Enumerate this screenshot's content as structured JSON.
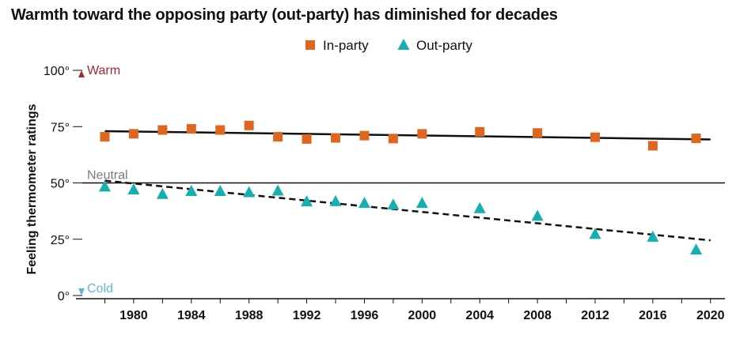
{
  "chart_data": {
    "type": "scatter",
    "title": "Warmth toward the opposing party (out-party) has diminished for decades",
    "ylabel": "Feeling thermometer ratings",
    "xlabel": "",
    "xlim": [
      1976,
      2021
    ],
    "ylim": [
      0,
      100
    ],
    "x_ticks": [
      1980,
      1984,
      1988,
      1992,
      1996,
      2000,
      2004,
      2008,
      2012,
      2016,
      2020
    ],
    "x_tick_labels": [
      "1980",
      "1984",
      "1988",
      "1992",
      "1996",
      "2000",
      "2004",
      "2008",
      "2012",
      "2016",
      "2020"
    ],
    "y_ticks": [
      0,
      25,
      50,
      75,
      100
    ],
    "y_tick_labels": [
      "0°",
      "25°",
      "50°",
      "75°",
      "100°"
    ],
    "legend_position": "top-center",
    "annotations": {
      "warm": "Warm",
      "cold": "Cold",
      "neutral": "Neutral"
    },
    "series": [
      {
        "name": "In-party",
        "marker": "square",
        "color": "#e0661f",
        "x": [
          1978,
          1980,
          1982,
          1984,
          1986,
          1988,
          1990,
          1992,
          1994,
          1996,
          1998,
          2000,
          2004,
          2008,
          2012,
          2016,
          2019
        ],
        "y": [
          70.5,
          71.8,
          73.5,
          74,
          73.5,
          75.5,
          70.5,
          69.5,
          70,
          71,
          69.7,
          71.8,
          72.7,
          72.2,
          70.3,
          66.5,
          69.8
        ],
        "trend": {
          "style": "solid",
          "color": "#111111",
          "x": [
            1978,
            2020
          ],
          "y": [
            73,
            69.3
          ]
        }
      },
      {
        "name": "Out-party",
        "marker": "triangle",
        "color": "#16aeae",
        "x": [
          1978,
          1980,
          1982,
          1984,
          1986,
          1988,
          1990,
          1992,
          1994,
          1996,
          1998,
          2000,
          2004,
          2008,
          2012,
          2016,
          2019
        ],
        "y": [
          48.3,
          47,
          45,
          46.3,
          46.3,
          45.8,
          46.5,
          41.7,
          41.8,
          41,
          40.3,
          41,
          38.7,
          35.3,
          27.3,
          26,
          20.3
        ],
        "trend": {
          "style": "dashed",
          "color": "#111111",
          "x": [
            1978,
            2020
          ],
          "y": [
            51,
            24.5
          ]
        }
      }
    ]
  },
  "colors": {
    "warm": "#a02831",
    "cold": "#5fb7d5",
    "neutral": "#7a7a7a",
    "axis": "#111111"
  }
}
